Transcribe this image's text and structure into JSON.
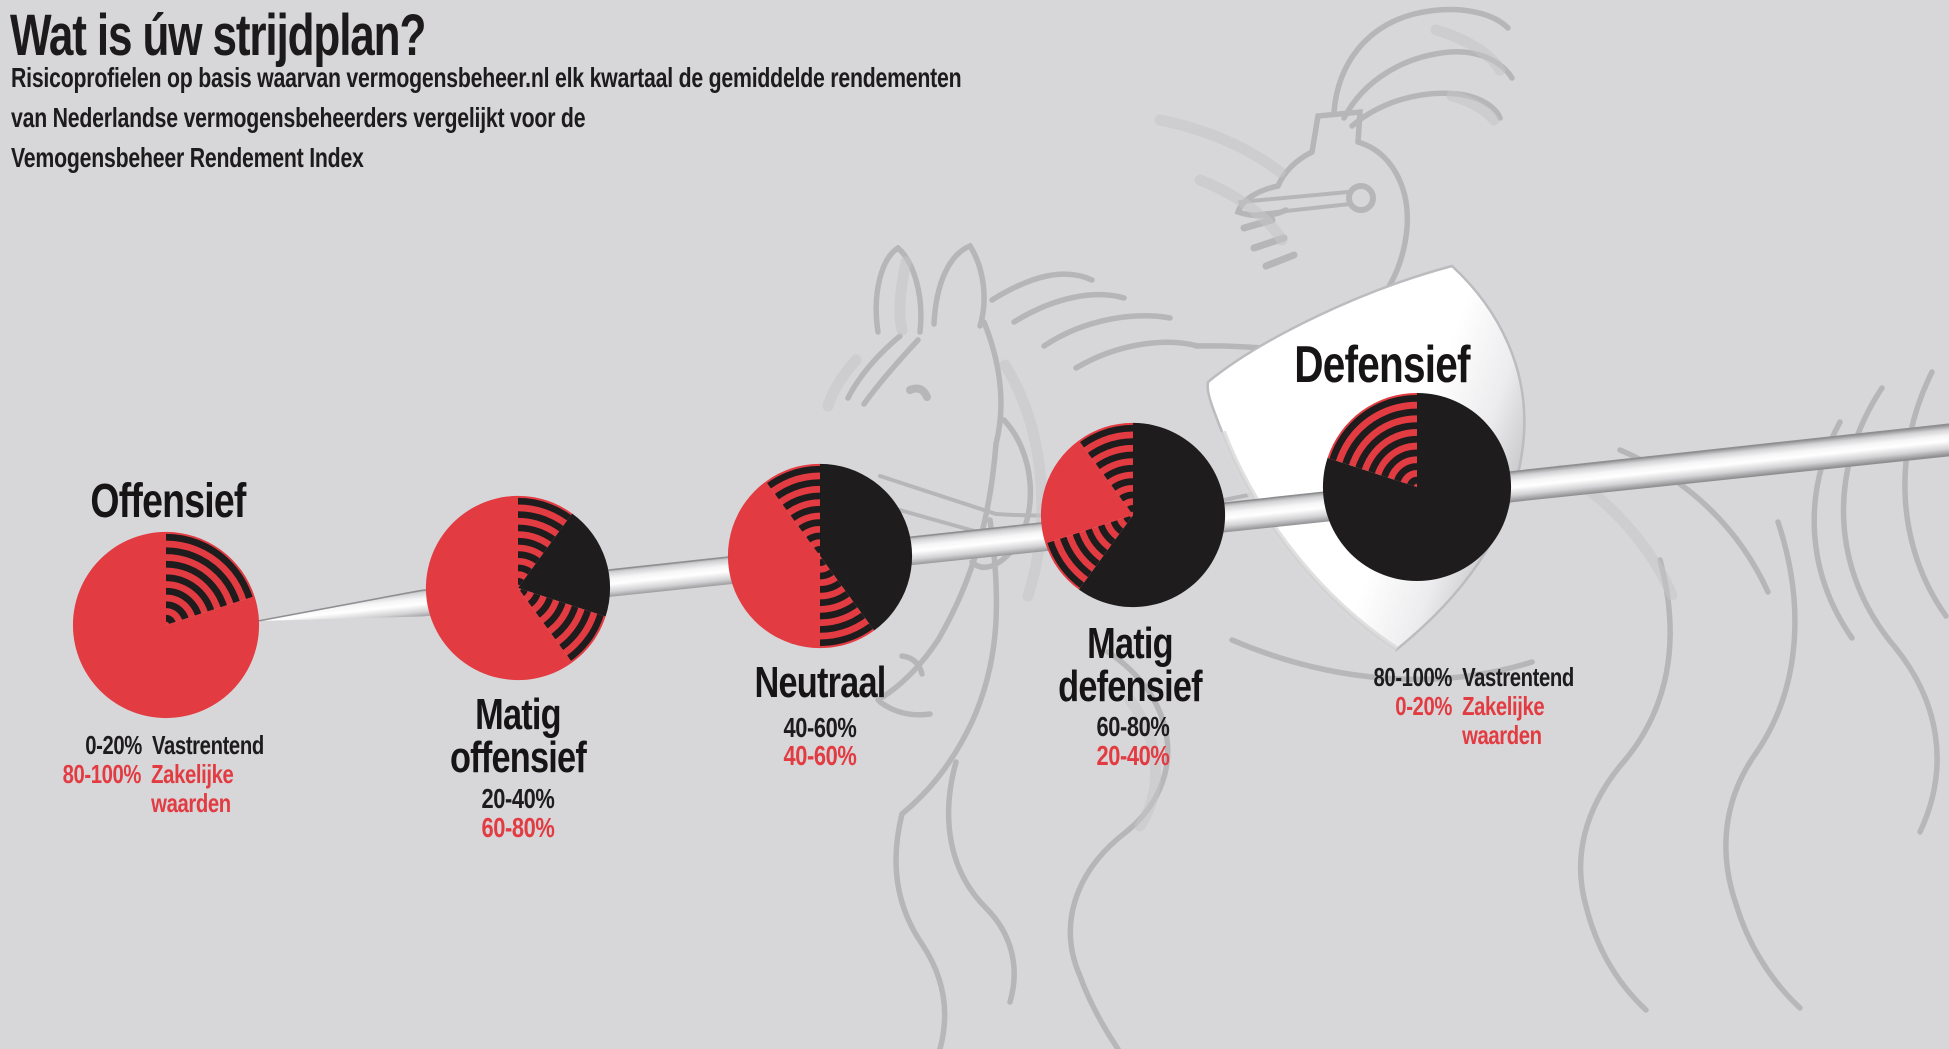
{
  "header": {
    "title": "Wat is úw strijdplan?",
    "subtitle_lines": [
      "Risicoprofielen op basis waarvan vermogensbeheer.nl elk kwartaal de gemiddelde rendementen",
      "van Nederlandse vermogensbeheerders vergelijkt voor de",
      "Vemogensbeheer Rendement Index"
    ]
  },
  "legend": {
    "vastrentend_label": "Vastrentend",
    "zakelijke_label": "Zakelijke waarden"
  },
  "colors": {
    "background": "#d7d7d9",
    "red": "#e23b41",
    "black": "#1e1c1d",
    "text_black": "#1d1b1c",
    "sketch_stroke": "#b5b5b8",
    "shield_white": "#ffffff"
  },
  "chart_data": {
    "type": "pie",
    "title": "Wat is úw strijdplan?",
    "subtitle": "Risicoprofielen op basis waarvan vermogensbeheer.nl elk kwartaal de gemiddelde rendementen van Nederlandse vermogensbeheerders vergelijkt voor de Vemogensbeheer Rendement Index",
    "series_colors": {
      "vastrentend": "#1e1c1d",
      "zakelijke_waarden": "#e23b41"
    },
    "striped_meaning": "striped arc zones = variable range between the two asset classes",
    "profiles": [
      {
        "name": "Offensief",
        "name_lines": [
          "Offensief"
        ],
        "title_position": "above",
        "vastrentend_pct": "0-20%",
        "zakelijke_pct": "80-100%",
        "label_style": "full",
        "segments": [
          {
            "kind": "striped",
            "start_deg": 0,
            "end_deg": 72
          },
          {
            "kind": "red",
            "start_deg": 72,
            "end_deg": 360
          }
        ]
      },
      {
        "name": "Matig offensief",
        "name_lines": [
          "Matig",
          "offensief"
        ],
        "title_position": "below",
        "vastrentend_pct": "20-40%",
        "zakelijke_pct": "60-80%",
        "label_style": "short",
        "segments": [
          {
            "kind": "striped",
            "start_deg": 0,
            "end_deg": 36
          },
          {
            "kind": "black",
            "start_deg": 36,
            "end_deg": 108
          },
          {
            "kind": "striped",
            "start_deg": 108,
            "end_deg": 144
          },
          {
            "kind": "red",
            "start_deg": 144,
            "end_deg": 360
          }
        ]
      },
      {
        "name": "Neutraal",
        "name_lines": [
          "Neutraal"
        ],
        "title_position": "below",
        "vastrentend_pct": "40-60%",
        "zakelijke_pct": "40-60%",
        "label_style": "short",
        "segments": [
          {
            "kind": "black",
            "start_deg": 0,
            "end_deg": 144
          },
          {
            "kind": "striped",
            "start_deg": 144,
            "end_deg": 180
          },
          {
            "kind": "red",
            "start_deg": 180,
            "end_deg": 324
          },
          {
            "kind": "striped",
            "start_deg": 324,
            "end_deg": 360
          }
        ]
      },
      {
        "name": "Matig defensief",
        "name_lines": [
          "Matig",
          "defensief"
        ],
        "title_position": "below",
        "vastrentend_pct": "60-80%",
        "zakelijke_pct": "20-40%",
        "label_style": "short",
        "segments": [
          {
            "kind": "black",
            "start_deg": 0,
            "end_deg": 216
          },
          {
            "kind": "striped",
            "start_deg": 216,
            "end_deg": 252
          },
          {
            "kind": "red",
            "start_deg": 252,
            "end_deg": 324
          },
          {
            "kind": "striped",
            "start_deg": 324,
            "end_deg": 360
          }
        ]
      },
      {
        "name": "Defensief",
        "name_lines": [
          "Defensief"
        ],
        "title_position": "above",
        "vastrentend_pct": "80-100%",
        "zakelijke_pct": "0-20%",
        "label_style": "full",
        "segments": [
          {
            "kind": "black",
            "start_deg": 0,
            "end_deg": 288
          },
          {
            "kind": "striped",
            "start_deg": 288,
            "end_deg": 360
          }
        ]
      }
    ]
  }
}
